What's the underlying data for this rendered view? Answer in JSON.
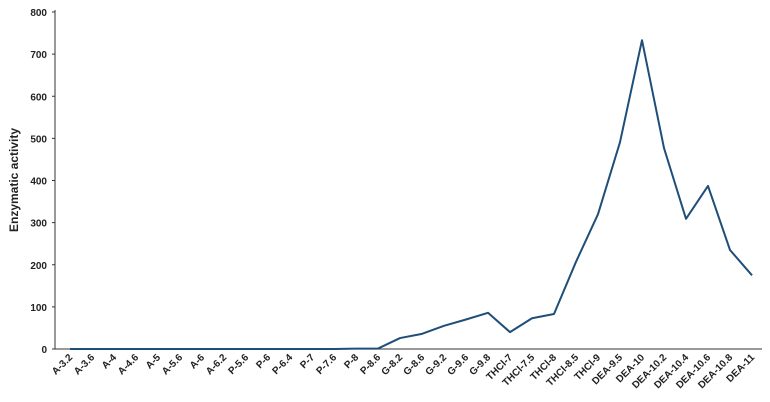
{
  "chart_data": {
    "type": "line",
    "y_label": "Enzymatic activity",
    "categories": [
      "A-3.2",
      "A-3.6",
      "A-4",
      "A-4.6",
      "A-5",
      "A-5.6",
      "A-6",
      "A-6.2",
      "P-5.6",
      "P-6",
      "P-6.4",
      "P-7",
      "P-7.6",
      "P-8",
      "P-8.6",
      "G-8.2",
      "G-8.6",
      "G-9.2",
      "G-9.6",
      "G-9.8",
      "THCl-7",
      "THCl-7.5",
      "THCl-8",
      "THCl-8.5",
      "THCl-9",
      "DEA-9.5",
      "DEA-10",
      "DEA-10.2",
      "DEA-10.4",
      "DEA-10.6",
      "DEA-10.8",
      "DEA-11"
    ],
    "values": [
      0,
      0,
      0,
      0,
      0,
      0,
      0,
      0,
      0,
      0,
      0,
      0,
      0,
      1,
      1,
      26,
      36,
      55,
      70,
      86,
      40,
      73,
      83,
      207,
      320,
      491,
      733,
      477,
      309,
      387,
      235,
      175
    ],
    "color": "#1f4e79",
    "ylim": [
      0,
      800
    ],
    "yticks": [
      0,
      100,
      200,
      300,
      400,
      500,
      600,
      700,
      800
    ],
    "grid": false
  }
}
